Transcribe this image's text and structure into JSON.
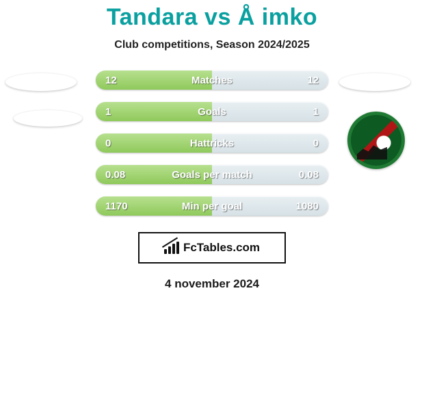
{
  "title": "Tandara vs Å imko",
  "subtitle": "Club competitions, Season 2024/2025",
  "rows": [
    {
      "label": "Matches",
      "left": "12",
      "right": "12"
    },
    {
      "label": "Goals",
      "left": "1",
      "right": "1"
    },
    {
      "label": "Hattricks",
      "left": "0",
      "right": "0"
    },
    {
      "label": "Goals per match",
      "left": "0.08",
      "right": "0.08"
    },
    {
      "label": "Min per goal",
      "left": "1170",
      "right": "1080"
    }
  ],
  "brand": "FcTables.com",
  "date": "4 november 2024",
  "colors": {
    "title": "#0aa0a0",
    "bar_left_top": "#b7e08f",
    "bar_left_bottom": "#8fc95b",
    "bar_right_top": "#e8eff2",
    "bar_right_bottom": "#d6e1e6",
    "text_shadow": "rgba(60,60,60,0.6)",
    "crest_green": "#1f7a33"
  },
  "typography": {
    "title_fontsize": 34,
    "subtitle_fontsize": 16,
    "bar_fontsize": 15,
    "date_fontsize": 17
  }
}
